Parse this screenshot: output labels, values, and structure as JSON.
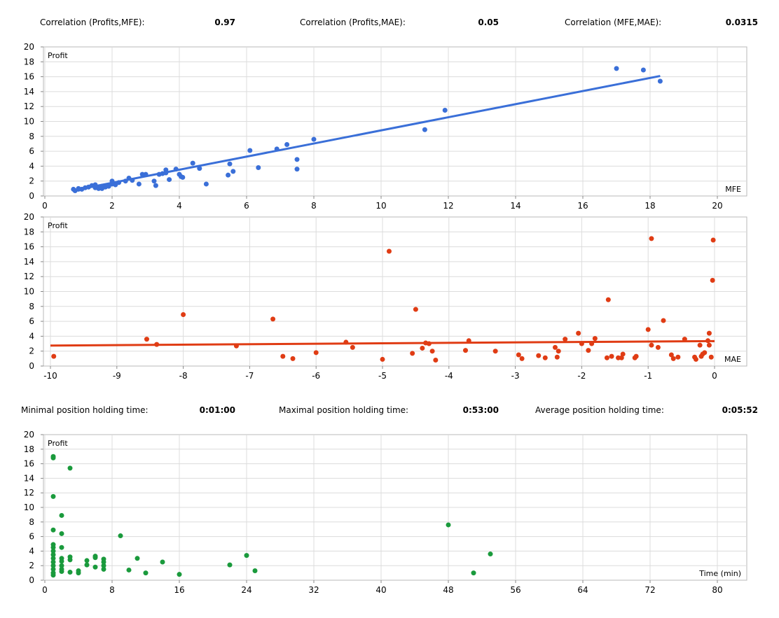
{
  "correlations": [
    {
      "label": "Correlation (Profits,MFE):",
      "value": "0.97"
    },
    {
      "label": "Correlation (Profits,MAE):",
      "value": "0.05"
    },
    {
      "label": "Correlation (MFE,MAE):",
      "value": "0.0315"
    }
  ],
  "holding": [
    {
      "label": "Minimal position holding time:",
      "value": "0:01:00"
    },
    {
      "label": "Maximal position holding time:",
      "value": "0:53:00"
    },
    {
      "label": "Average position holding time:",
      "value": "0:05:52"
    }
  ],
  "chart_data": [
    {
      "type": "scatter",
      "name": "profit-vs-mfe",
      "xlabel": "MFE",
      "ylabel": "Profit",
      "xlim": [
        0,
        20
      ],
      "ylim": [
        0,
        20
      ],
      "xticks": [
        0,
        2,
        4,
        6,
        8,
        10,
        12,
        14,
        16,
        18,
        20
      ],
      "yticks": [
        0,
        2,
        4,
        6,
        8,
        10,
        12,
        14,
        16,
        18,
        20
      ],
      "grid": true,
      "color": "#3a6fd8",
      "points": [
        [
          17.0,
          17.1
        ],
        [
          17.8,
          16.9
        ],
        [
          18.3,
          15.4
        ],
        [
          11.9,
          11.5
        ],
        [
          11.3,
          8.9
        ],
        [
          8.0,
          7.6
        ],
        [
          7.2,
          6.9
        ],
        [
          6.9,
          6.3
        ],
        [
          6.1,
          6.1
        ],
        [
          7.5,
          4.9
        ],
        [
          7.5,
          3.6
        ],
        [
          6.35,
          3.8
        ],
        [
          5.6,
          3.3
        ],
        [
          5.45,
          2.8
        ],
        [
          5.5,
          4.3
        ],
        [
          4.8,
          1.6
        ],
        [
          4.6,
          3.7
        ],
        [
          4.4,
          4.4
        ],
        [
          4.1,
          2.5
        ],
        [
          4.0,
          2.9
        ],
        [
          3.9,
          3.6
        ],
        [
          4.05,
          2.6
        ],
        [
          3.6,
          3.5
        ],
        [
          3.6,
          3.1
        ],
        [
          3.7,
          2.2
        ],
        [
          3.4,
          2.9
        ],
        [
          3.5,
          3.0
        ],
        [
          3.3,
          1.4
        ],
        [
          3.25,
          2.0
        ],
        [
          3.0,
          2.9
        ],
        [
          2.9,
          2.9
        ],
        [
          2.8,
          1.6
        ],
        [
          2.6,
          2.1
        ],
        [
          2.5,
          2.4
        ],
        [
          2.4,
          2.0
        ],
        [
          2.2,
          1.8
        ],
        [
          2.0,
          2.0
        ],
        [
          2.1,
          1.5
        ],
        [
          1.9,
          1.3
        ],
        [
          1.8,
          1.2
        ],
        [
          1.7,
          1.3
        ],
        [
          1.6,
          1.0
        ],
        [
          1.5,
          1.5
        ],
        [
          1.4,
          1.4
        ],
        [
          1.3,
          1.2
        ],
        [
          1.2,
          1.1
        ],
        [
          1.0,
          1.0
        ],
        [
          0.9,
          0.7
        ],
        [
          1.0,
          0.9
        ],
        [
          1.5,
          1.1
        ],
        [
          1.7,
          1.0
        ],
        [
          2.0,
          1.6
        ],
        [
          1.1,
          0.9
        ],
        [
          0.85,
          0.9
        ]
      ],
      "trendline": [
        [
          0.85,
          0.75
        ],
        [
          18.3,
          16.1
        ]
      ]
    },
    {
      "type": "scatter",
      "name": "profit-vs-mae",
      "xlabel": "MAE",
      "ylabel": "Profit",
      "xlim": [
        -10,
        0
      ],
      "ylim": [
        0,
        20
      ],
      "xticks": [
        -10,
        -9,
        -8,
        -7,
        -6,
        -5,
        -4,
        -3,
        -2,
        -1,
        0
      ],
      "yticks": [
        0,
        2,
        4,
        6,
        8,
        10,
        12,
        14,
        16,
        18,
        20
      ],
      "grid": true,
      "color": "#e03c14",
      "points": [
        [
          -9.95,
          1.3
        ],
        [
          -8.55,
          3.6
        ],
        [
          -8.4,
          2.9
        ],
        [
          -8.0,
          6.9
        ],
        [
          -7.2,
          2.7
        ],
        [
          -6.65,
          6.3
        ],
        [
          -6.5,
          1.3
        ],
        [
          -6.35,
          1.0
        ],
        [
          -6.0,
          1.8
        ],
        [
          -5.55,
          3.2
        ],
        [
          -5.45,
          2.5
        ],
        [
          -5.0,
          0.9
        ],
        [
          -4.9,
          15.4
        ],
        [
          -4.55,
          1.7
        ],
        [
          -4.5,
          7.6
        ],
        [
          -4.4,
          2.4
        ],
        [
          -4.35,
          3.1
        ],
        [
          -4.3,
          3.0
        ],
        [
          -4.25,
          2.0
        ],
        [
          -4.2,
          0.8
        ],
        [
          -3.75,
          2.1
        ],
        [
          -3.7,
          3.4
        ],
        [
          -3.3,
          2.0
        ],
        [
          -2.95,
          1.5
        ],
        [
          -2.9,
          1.0
        ],
        [
          -2.65,
          1.4
        ],
        [
          -2.55,
          1.1
        ],
        [
          -2.4,
          2.5
        ],
        [
          -2.35,
          2.0
        ],
        [
          -2.37,
          1.2
        ],
        [
          -2.25,
          3.6
        ],
        [
          -2.05,
          4.4
        ],
        [
          -2.0,
          3.0
        ],
        [
          -1.9,
          2.1
        ],
        [
          -1.85,
          3.0
        ],
        [
          -1.8,
          3.7
        ],
        [
          -1.6,
          8.9
        ],
        [
          -1.62,
          1.1
        ],
        [
          -1.55,
          1.3
        ],
        [
          -1.45,
          1.1
        ],
        [
          -1.4,
          1.1
        ],
        [
          -1.38,
          1.6
        ],
        [
          -1.2,
          1.1
        ],
        [
          -1.18,
          1.3
        ],
        [
          -1.0,
          4.9
        ],
        [
          -0.95,
          2.8
        ],
        [
          -0.95,
          17.1
        ],
        [
          -0.85,
          2.5
        ],
        [
          -0.77,
          6.1
        ],
        [
          -0.65,
          1.5
        ],
        [
          -0.62,
          1.0
        ],
        [
          -0.55,
          1.2
        ],
        [
          -0.45,
          3.6
        ],
        [
          -0.3,
          1.2
        ],
        [
          -0.28,
          0.9
        ],
        [
          -0.22,
          2.8
        ],
        [
          -0.2,
          1.3
        ],
        [
          -0.18,
          1.6
        ],
        [
          -0.15,
          1.8
        ],
        [
          -0.1,
          3.4
        ],
        [
          -0.08,
          4.4
        ],
        [
          -0.08,
          2.8
        ],
        [
          -0.05,
          1.2
        ],
        [
          -0.03,
          11.5
        ],
        [
          -0.02,
          16.9
        ]
      ],
      "trendline": [
        [
          -10,
          2.75
        ],
        [
          0,
          3.35
        ]
      ]
    },
    {
      "type": "scatter",
      "name": "profit-vs-time",
      "xlabel": "Time (min)",
      "ylabel": "Profit",
      "xlim": [
        0,
        80
      ],
      "ylim": [
        0,
        20
      ],
      "xticks": [
        0,
        8,
        16,
        24,
        32,
        40,
        48,
        56,
        64,
        72,
        80
      ],
      "yticks": [
        0,
        2,
        4,
        6,
        8,
        10,
        12,
        14,
        16,
        18,
        20
      ],
      "grid": true,
      "color": "#1a9a3c",
      "points": [
        [
          1,
          17.0
        ],
        [
          1,
          16.8
        ],
        [
          1,
          11.5
        ],
        [
          1,
          6.9
        ],
        [
          1,
          4.9
        ],
        [
          1,
          4.5
        ],
        [
          1,
          4.0
        ],
        [
          1,
          3.5
        ],
        [
          1,
          3.0
        ],
        [
          1,
          2.5
        ],
        [
          1,
          2.0
        ],
        [
          1,
          1.5
        ],
        [
          1,
          1.0
        ],
        [
          1,
          0.7
        ],
        [
          2,
          8.9
        ],
        [
          2,
          6.4
        ],
        [
          2,
          4.5
        ],
        [
          2,
          3.0
        ],
        [
          2,
          2.6
        ],
        [
          2,
          2.0
        ],
        [
          2,
          1.5
        ],
        [
          2,
          1.2
        ],
        [
          3,
          15.4
        ],
        [
          3,
          3.2
        ],
        [
          3,
          2.8
        ],
        [
          3,
          1.1
        ],
        [
          4,
          1.3
        ],
        [
          4,
          1.0
        ],
        [
          5,
          2.7
        ],
        [
          5,
          2.1
        ],
        [
          6,
          3.1
        ],
        [
          6,
          3.3
        ],
        [
          6,
          1.8
        ],
        [
          7,
          2.9
        ],
        [
          7,
          2.5
        ],
        [
          7,
          2.0
        ],
        [
          7,
          1.5
        ],
        [
          9,
          6.1
        ],
        [
          10,
          1.4
        ],
        [
          11,
          3.0
        ],
        [
          12,
          1.0
        ],
        [
          14,
          2.5
        ],
        [
          16,
          0.8
        ],
        [
          22,
          2.1
        ],
        [
          24,
          3.4
        ],
        [
          25,
          1.3
        ],
        [
          48,
          7.6
        ],
        [
          51,
          1.0
        ],
        [
          53,
          3.6
        ]
      ]
    }
  ]
}
